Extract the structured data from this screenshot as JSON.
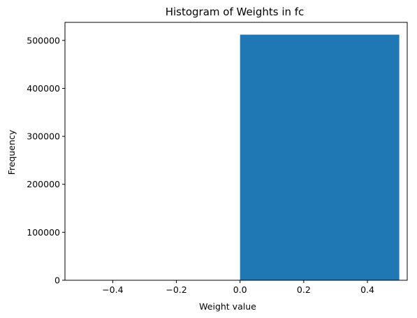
{
  "chart_data": {
    "type": "bar",
    "title": "Histogram of Weights in fc",
    "xlabel": "Weight value",
    "ylabel": "Frequency",
    "xlim": [
      -0.55,
      0.525
    ],
    "ylim": [
      0,
      537600
    ],
    "xticks": [
      -0.4,
      -0.2,
      0.0,
      0.2,
      0.4
    ],
    "xtick_labels": [
      "−0.4",
      "−0.2",
      "0.0",
      "0.2",
      "0.4"
    ],
    "yticks": [
      0,
      100000,
      200000,
      300000,
      400000,
      500000
    ],
    "ytick_labels": [
      "0",
      "100000",
      "200000",
      "300000",
      "400000",
      "500000"
    ],
    "bars": [
      {
        "x0": 0.0,
        "x1": 0.5,
        "value": 512000
      }
    ],
    "bar_color": "#1f77b4",
    "grid": false,
    "legend": "none"
  }
}
